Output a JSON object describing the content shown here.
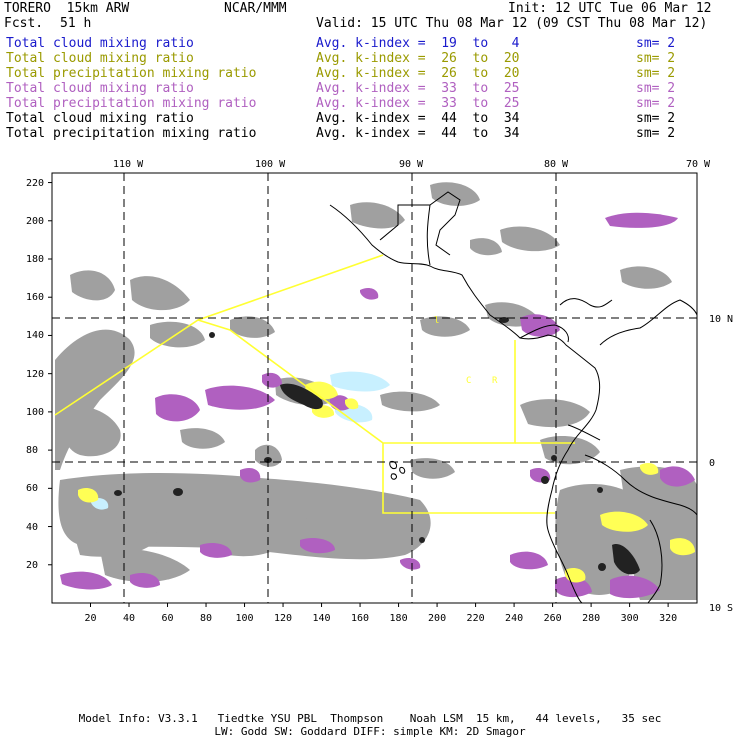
{
  "header": {
    "model": "TORERO  15km ARW",
    "center": "NCAR/MMM",
    "init": "Init: 12 UTC Tue 06 Mar 12",
    "fcst_label": "Fcst.",
    "fcst_value": "51 h",
    "valid": "Valid: 15 UTC Thu 08 Mar 12 (09 CST Thu 08 Mar 12)"
  },
  "legend": [
    {
      "field": "Total cloud mixing ratio",
      "k": "Avg. k-index =  19  to   4",
      "sm": "sm= 2",
      "color": "#1a1acc"
    },
    {
      "field": "Total cloud mixing ratio",
      "k": "Avg. k-index =  26  to  20",
      "sm": "sm= 2",
      "color": "#9a9a00"
    },
    {
      "field": "Total precipitation mixing ratio",
      "k": "Avg. k-index =  26  to  20",
      "sm": "sm= 2",
      "color": "#9a9a00"
    },
    {
      "field": "Total cloud mixing ratio",
      "k": "Avg. k-index =  33  to  25",
      "sm": "sm= 2",
      "color": "#b060c0"
    },
    {
      "field": "Total precipitation mixing ratio",
      "k": "Avg. k-index =  33  to  25",
      "sm": "sm= 2",
      "color": "#b060c0"
    },
    {
      "field": "Total cloud mixing ratio",
      "k": "Avg. k-index =  44  to  34",
      "sm": "sm= 2",
      "color": "#000000"
    },
    {
      "field": "Total precipitation mixing ratio",
      "k": "Avg. k-index =  44  to  34",
      "sm": "sm= 2",
      "color": "#000000"
    }
  ],
  "axes": {
    "top_lon": [
      "110 W",
      "100 W",
      "90 W",
      "80 W",
      "70 W"
    ],
    "right_lat": [
      "10 N",
      "0",
      "10 S"
    ],
    "y_ticks": [
      "220",
      "200",
      "180",
      "160",
      "140",
      "120",
      "100",
      "80",
      "60",
      "40",
      "20"
    ],
    "x_ticks": [
      "20",
      "40",
      "60",
      "80",
      "100",
      "120",
      "140",
      "160",
      "180",
      "200",
      "220",
      "240",
      "260",
      "280",
      "300",
      "320"
    ]
  },
  "footer": {
    "line1": "Model Info: V3.3.1   Tiedtke YSU PBL  Thompson    Noah LSM  15 km,   44 levels,   35 sec",
    "line2": "LW: Godd SW: Goddard DIFF: simple KM: 2D Smagor"
  },
  "colors": {
    "gray": "#9c9c9c",
    "purple": "#b060c0",
    "yellow": "#ffff55",
    "dark": "#222222",
    "cyan": "#c8f0ff"
  }
}
